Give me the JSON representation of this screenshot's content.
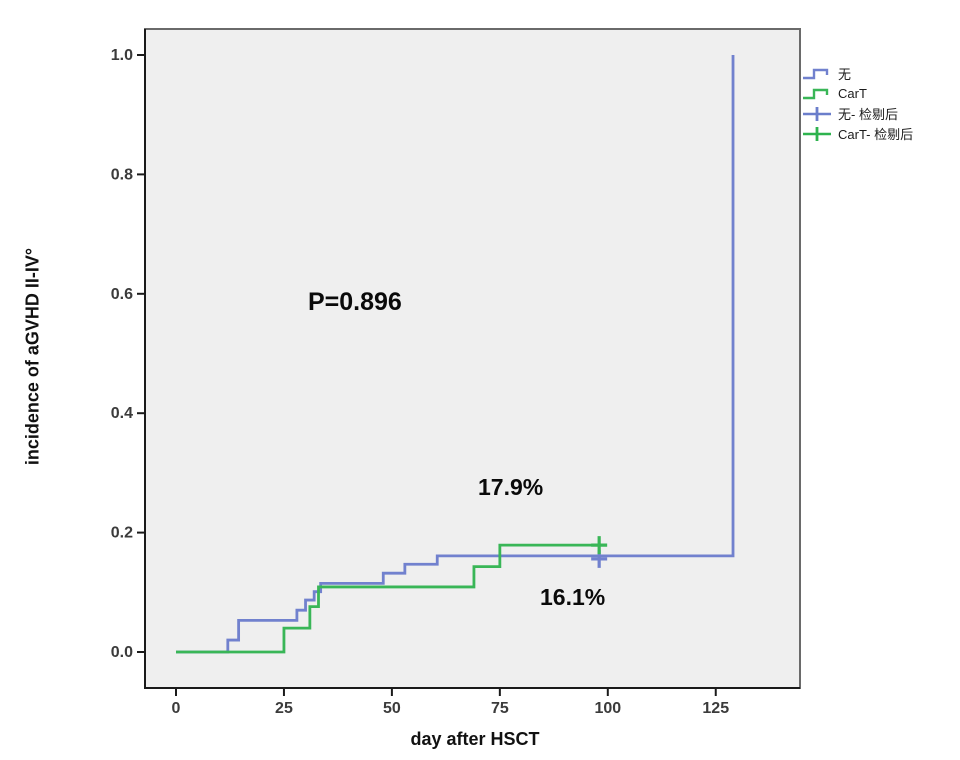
{
  "chart_data": {
    "type": "line",
    "subtype": "cumulative-incidence-step-curve",
    "title": "",
    "xlabel": "day after HSCT",
    "ylabel": "incidence of aGVHD II-IV°",
    "xlim": [
      -7,
      144
    ],
    "ylim": [
      0,
      1.05
    ],
    "grid": false,
    "legend_position": "top-right-outside",
    "x_ticks": [
      0,
      25,
      50,
      75,
      100,
      125
    ],
    "y_ticks": [
      {
        "value": 0.0,
        "label": "0.0"
      },
      {
        "value": 0.2,
        "label": "0.2"
      },
      {
        "value": 0.4,
        "label": "0.4"
      },
      {
        "value": 0.6,
        "label": "0.6"
      },
      {
        "value": 0.8,
        "label": "0.8"
      },
      {
        "value": 1.0,
        "label": "1.0"
      }
    ],
    "series": [
      {
        "name": "无",
        "color": "#7181ce",
        "points": [
          [
            0,
            0
          ],
          [
            12,
            0.02
          ],
          [
            14.5,
            0.053
          ],
          [
            28,
            0.07
          ],
          [
            30,
            0.087
          ],
          [
            32,
            0.101
          ],
          [
            33.5,
            0.115
          ],
          [
            48,
            0.132
          ],
          [
            53,
            0.147
          ],
          [
            60.5,
            0.161
          ],
          [
            129,
            0.161
          ],
          [
            129,
            1.0
          ]
        ],
        "censored": [
          [
            98,
            0.161
          ]
        ],
        "final_incidence_label": "16.1%"
      },
      {
        "name": "CarT",
        "color": "#39b657",
        "points": [
          [
            0,
            0
          ],
          [
            25,
            0.04
          ],
          [
            31,
            0.076
          ],
          [
            33,
            0.109
          ],
          [
            69,
            0.143
          ],
          [
            75,
            0.179
          ],
          [
            98,
            0.179
          ]
        ],
        "censored": [
          [
            98,
            0.179
          ]
        ],
        "final_incidence_label": "17.9%"
      }
    ],
    "annotations": [
      {
        "text": "P=0.896",
        "x": 45,
        "y": 0.59
      },
      {
        "text": "17.9%",
        "x": 72,
        "y": 0.27
      },
      {
        "text": "16.1%",
        "x": 87,
        "y": 0.095
      }
    ]
  },
  "axes": {
    "x_title": "day after HSCT",
    "y_title": "incidence of aGVHD II-IV°"
  },
  "annotations": {
    "p_value": "P=0.896",
    "upper_pct": "17.9%",
    "lower_pct": "16.1%"
  },
  "legend": {
    "items": [
      {
        "label": "无",
        "glyph": "step",
        "color": "#7181ce"
      },
      {
        "label": "CarT",
        "glyph": "step",
        "color": "#39b657"
      },
      {
        "label": "无- 检剔后",
        "glyph": "censor",
        "color": "#6b7ecb"
      },
      {
        "label": "CarT- 检剔后",
        "glyph": "censor",
        "color": "#2eb34e"
      }
    ]
  },
  "colors": {
    "plot_background": "#efefef",
    "frame_border": "#6a6a6a",
    "axis_line": "#1a1a1a",
    "tick_label": "#3b3b3b",
    "page_background": "#ffffff"
  }
}
